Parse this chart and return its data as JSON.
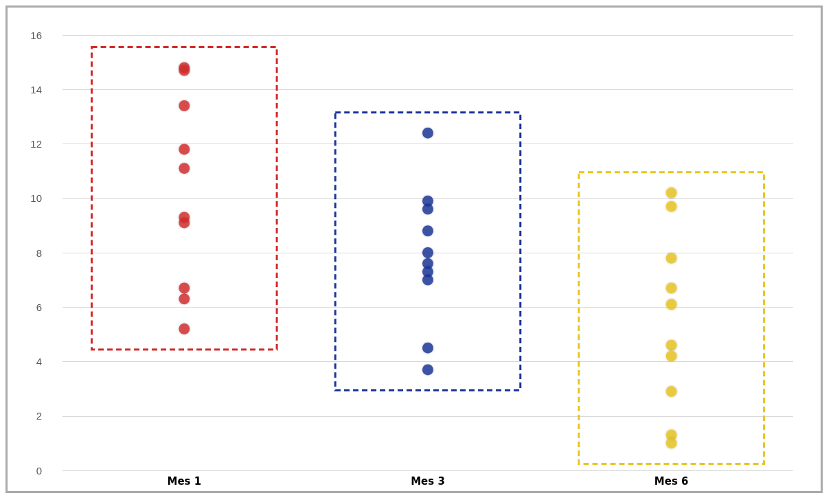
{
  "chart_data": {
    "type": "scatter",
    "categories": [
      "Mes 1",
      "Mes 3",
      "Mes 6"
    ],
    "series": [
      {
        "color": "#d42a2a",
        "x": [
          "Mes 1",
          "Mes 1",
          "Mes 1",
          "Mes 1",
          "Mes 1",
          "Mes 1",
          "Mes 1",
          "Mes 1",
          "Mes 1",
          "Mes 1"
        ],
        "values": [
          14.8,
          14.7,
          13.4,
          11.8,
          11.1,
          9.1,
          9.3,
          6.3,
          6.7,
          5.2
        ]
      },
      {
        "color": "#1c3399",
        "x": [
          "Mes 3",
          "Mes 3",
          "Mes 3",
          "Mes 3",
          "Mes 3",
          "Mes 3",
          "Mes 3",
          "Mes 3",
          "Mes 3",
          "Mes 3"
        ],
        "values": [
          12.4,
          9.9,
          9.6,
          8.8,
          8.0,
          7.6,
          7.3,
          7.0,
          4.5,
          3.7
        ]
      },
      {
        "color": "#e8c51e",
        "x": [
          "Mes 6",
          "Mes 6",
          "Mes 6",
          "Mes 6",
          "Mes 6",
          "Mes 6",
          "Mes 6",
          "Mes 6",
          "Mes 6",
          "Mes 6"
        ],
        "values": [
          10.2,
          9.7,
          7.8,
          6.7,
          6.1,
          4.6,
          4.2,
          2.9,
          1.3,
          1.0
        ]
      }
    ],
    "ylim": [
      0,
      16
    ],
    "yticks": [
      0,
      2,
      4,
      6,
      8,
      10,
      12,
      14,
      16
    ],
    "grid": "y",
    "marker": "circle"
  }
}
